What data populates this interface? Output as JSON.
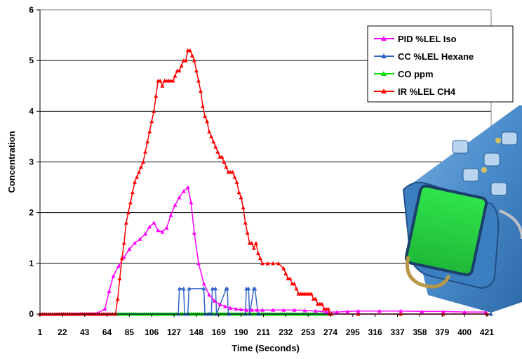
{
  "chart_data": {
    "type": "line",
    "xlabel": "Time (Seconds)",
    "ylabel": "Concentration",
    "xlim": [
      1,
      425
    ],
    "ylim": [
      0,
      6
    ],
    "y_ticks": [
      0,
      1,
      2,
      3,
      4,
      5,
      6
    ],
    "x_tick_labels": [
      "1",
      "22",
      "43",
      "64",
      "85",
      "106",
      "127",
      "148",
      "169",
      "190",
      "211",
      "232",
      "253",
      "274",
      "295",
      "316",
      "337",
      "358",
      "379",
      "400",
      "421"
    ],
    "grid": "horizontal",
    "legend_position": "top-right",
    "series": [
      {
        "name": "PID %LEL Iso",
        "color": "#ff00ff",
        "x": [
          1,
          55,
          62,
          66,
          70,
          75,
          80,
          85,
          90,
          95,
          100,
          104,
          108,
          112,
          116,
          120,
          124,
          128,
          132,
          136,
          140,
          143,
          146,
          150,
          155,
          160,
          165,
          170,
          175,
          180,
          185,
          190,
          195,
          200,
          205,
          210,
          220,
          230,
          240,
          250,
          260,
          270,
          280,
          290,
          300,
          320,
          340,
          360,
          380,
          400,
          420
        ],
        "y": [
          0,
          0.02,
          0.1,
          0.45,
          0.75,
          0.95,
          1.12,
          1.28,
          1.4,
          1.48,
          1.58,
          1.72,
          1.8,
          1.65,
          1.62,
          1.7,
          1.95,
          2.15,
          2.3,
          2.42,
          2.5,
          2.2,
          1.6,
          1.0,
          0.6,
          0.38,
          0.26,
          0.19,
          0.15,
          0.12,
          0.1,
          0.09,
          0.08,
          0.08,
          0.08,
          0.08,
          0.08,
          0.08,
          0.08,
          0.07,
          0.06,
          0.04,
          0.04,
          0.05,
          0.06,
          0.06,
          0.06,
          0.05,
          0.05,
          0.04,
          0.04
        ]
      },
      {
        "name": "CC %LEL Hexane",
        "color": "#3366cc",
        "x": [
          1,
          131,
          132,
          136,
          137,
          140,
          141,
          155,
          156,
          159,
          160,
          162,
          163,
          166,
          167,
          176,
          177,
          178,
          179,
          194,
          195,
          197,
          198,
          202,
          203,
          206,
          207,
          425
        ],
        "y": [
          0,
          0,
          0.5,
          0.5,
          0,
          0,
          0.5,
          0.5,
          0,
          0,
          0,
          0,
          0.5,
          0.5,
          0,
          0.5,
          0.5,
          0,
          0,
          0,
          0.5,
          0.5,
          0,
          0.5,
          0.5,
          0,
          0,
          0
        ]
      },
      {
        "name": "CO ppm",
        "color": "#00dd00",
        "x": [
          73,
          275
        ],
        "y": [
          0,
          0
        ]
      },
      {
        "name": "IR %LEL CH4",
        "color": "#ff0000",
        "x": [
          1,
          72,
          74,
          76,
          78,
          80,
          82,
          84,
          86,
          88,
          90,
          92,
          94,
          96,
          98,
          100,
          102,
          104,
          106,
          108,
          110,
          112,
          114,
          116,
          118,
          120,
          122,
          124,
          126,
          128,
          130,
          132,
          134,
          136,
          138,
          140,
          142,
          144,
          146,
          148,
          150,
          152,
          154,
          156,
          158,
          160,
          162,
          164,
          166,
          168,
          170,
          172,
          174,
          176,
          178,
          180,
          182,
          184,
          186,
          188,
          190,
          192,
          194,
          196,
          198,
          200,
          202,
          204,
          206,
          208,
          210,
          215,
          220,
          225,
          230,
          232,
          234,
          236,
          238,
          240,
          242,
          244,
          246,
          248,
          250,
          252,
          254,
          256,
          258,
          260,
          262,
          264,
          266,
          268,
          270,
          272,
          273,
          275,
          300,
          340,
          380,
          421
        ],
        "y": [
          0,
          0,
          0.3,
          0.7,
          1.1,
          1.4,
          1.8,
          2.0,
          2.2,
          2.4,
          2.6,
          2.7,
          2.8,
          2.9,
          3.0,
          3.2,
          3.4,
          3.6,
          3.8,
          4.0,
          4.3,
          4.6,
          4.6,
          4.5,
          4.6,
          4.6,
          4.6,
          4.6,
          4.6,
          4.7,
          4.8,
          4.8,
          4.9,
          5.0,
          5.0,
          5.2,
          5.2,
          5.1,
          5.0,
          4.8,
          4.6,
          4.4,
          4.1,
          3.9,
          3.8,
          3.6,
          3.5,
          3.4,
          3.3,
          3.2,
          3.1,
          3.1,
          3.0,
          2.9,
          2.8,
          2.8,
          2.8,
          2.7,
          2.6,
          2.4,
          2.3,
          2.1,
          1.8,
          1.6,
          1.4,
          1.4,
          1.3,
          1.4,
          1.2,
          1.1,
          1.0,
          1.0,
          1.0,
          1.0,
          0.9,
          0.8,
          0.7,
          0.7,
          0.6,
          0.6,
          0.5,
          0.4,
          0.4,
          0.4,
          0.4,
          0.4,
          0.4,
          0.4,
          0.3,
          0.3,
          0.2,
          0.2,
          0.2,
          0.1,
          0.1,
          0.1,
          0.0,
          0,
          0,
          0,
          0,
          0
        ]
      }
    ]
  }
}
